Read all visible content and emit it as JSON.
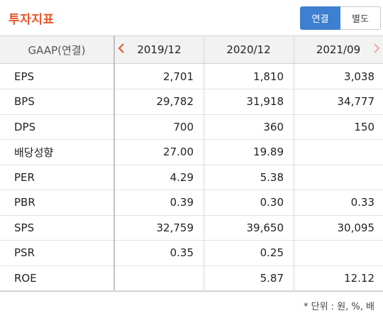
{
  "header": {
    "title": "투자지표",
    "toggle": [
      {
        "label": "연결",
        "active": true
      },
      {
        "label": "별도",
        "active": false
      }
    ]
  },
  "table": {
    "label_header": "GAAP(연결)",
    "periods": [
      "2019/12",
      "2020/12",
      "2021/09"
    ],
    "prev_icon": "chevron-left-icon",
    "next_icon": "chevron-right-icon",
    "rows": [
      {
        "label": "EPS",
        "values": [
          "2,701",
          "1,810",
          "3,038"
        ]
      },
      {
        "label": "BPS",
        "values": [
          "29,782",
          "31,918",
          "34,777"
        ]
      },
      {
        "label": "DPS",
        "values": [
          "700",
          "360",
          "150"
        ]
      },
      {
        "label": "배당성향",
        "values": [
          "27.00",
          "19.89",
          ""
        ]
      },
      {
        "label": "PER",
        "values": [
          "4.29",
          "5.38",
          ""
        ]
      },
      {
        "label": "PBR",
        "values": [
          "0.39",
          "0.30",
          "0.33"
        ]
      },
      {
        "label": "SPS",
        "values": [
          "32,759",
          "39,650",
          "30,095"
        ]
      },
      {
        "label": "PSR",
        "values": [
          "0.35",
          "0.25",
          ""
        ]
      },
      {
        "label": "ROE",
        "values": [
          "",
          "5.87",
          "12.12"
        ]
      }
    ]
  },
  "footnote": "* 단위 : 원, %, 배",
  "colors": {
    "accent": "#e8562a",
    "toggle_active": "#3d7fd1"
  }
}
